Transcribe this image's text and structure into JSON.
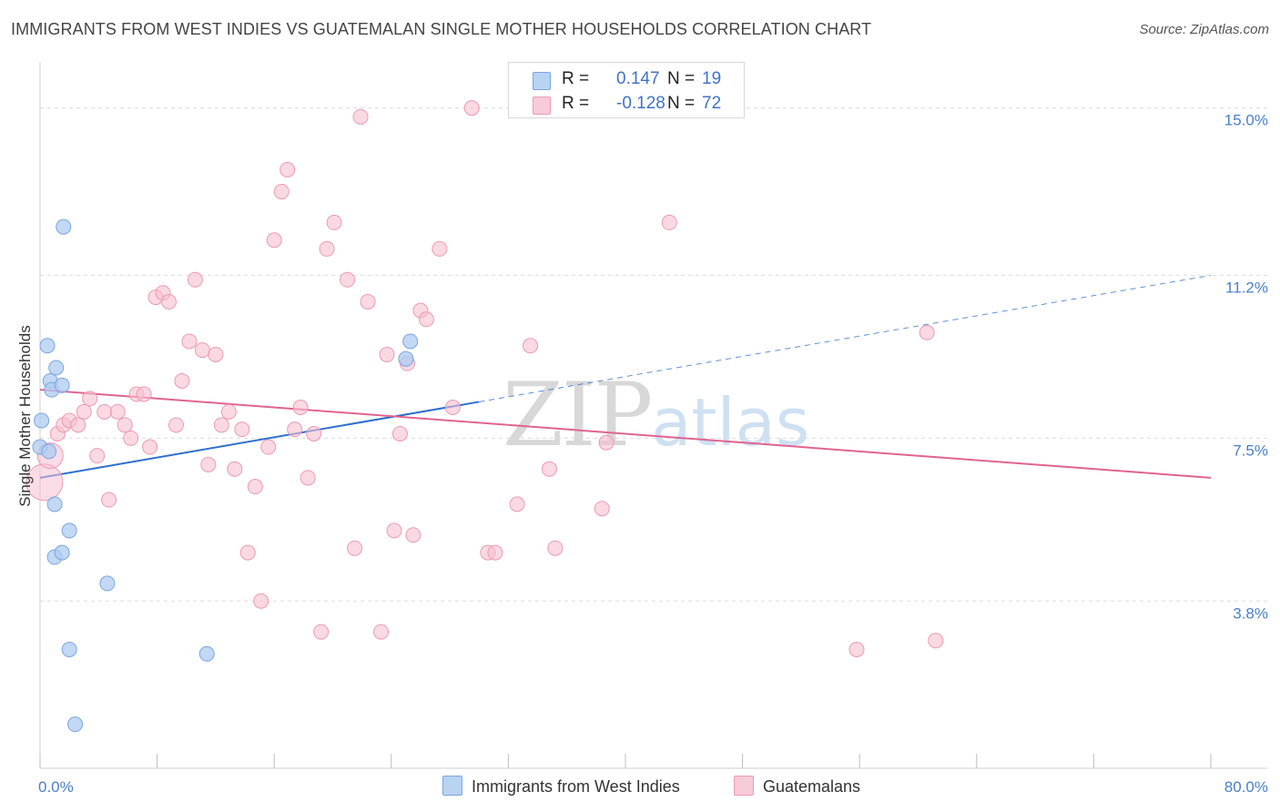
{
  "title": "IMMIGRANTS FROM WEST INDIES VS GUATEMALAN SINGLE MOTHER HOUSEHOLDS CORRELATION CHART",
  "source": "Source: ZipAtlas.com",
  "watermark": {
    "zip": "ZIP",
    "atlas": "atlas"
  },
  "legend": {
    "rows": [
      {
        "r_label": "R =",
        "r_value": "0.147",
        "n_label": "N =",
        "n_value": "19"
      },
      {
        "r_label": "R =",
        "r_value": "-0.128",
        "n_label": "N =",
        "n_value": "72"
      }
    ]
  },
  "bottom_legend": {
    "west_indies": "Immigrants from West Indies",
    "guatemalans": "Guatemalans"
  },
  "colors": {
    "blue_fill": "#aecbf0",
    "blue_stroke": "#7aa6df",
    "blue_line": "#2f6fce",
    "pink_fill": "#f6c0d1",
    "pink_stroke": "#ec9ab4",
    "pink_line": "#e0648f",
    "grid": "#dcdcdc",
    "tick_label": "#4a7fc9"
  },
  "chart_data": {
    "type": "scatter",
    "title": "IMMIGRANTS FROM WEST INDIES VS GUATEMALAN SINGLE MOTHER HOUSEHOLDS CORRELATION CHART",
    "xlabel": "",
    "ylabel": "Single Mother Households",
    "xlim": [
      0,
      80
    ],
    "ylim": [
      0,
      15.8
    ],
    "x_tick_labels": [
      {
        "value": 0,
        "label": "0.0%"
      },
      {
        "value": 80,
        "label": "80.0%"
      }
    ],
    "y_tick_labels": [
      {
        "value": 3.8,
        "label": "3.8%"
      },
      {
        "value": 7.5,
        "label": "7.5%"
      },
      {
        "value": 11.2,
        "label": "11.2%"
      },
      {
        "value": 15.0,
        "label": "15.0%"
      }
    ],
    "series": [
      {
        "name": "Immigrants from West Indies",
        "color": "blue",
        "r": 0.147,
        "n": 19,
        "trend": {
          "x_start": 0,
          "y_start": 6.6,
          "x_solid_end": 30,
          "x_end": 80,
          "y_end": 11.2
        },
        "points": [
          {
            "x": 0.0,
            "y": 7.3
          },
          {
            "x": 0.1,
            "y": 7.9
          },
          {
            "x": 0.5,
            "y": 9.6
          },
          {
            "x": 0.6,
            "y": 7.2
          },
          {
            "x": 0.7,
            "y": 8.8
          },
          {
            "x": 0.8,
            "y": 8.6
          },
          {
            "x": 1.0,
            "y": 6.0
          },
          {
            "x": 1.0,
            "y": 4.8
          },
          {
            "x": 1.1,
            "y": 9.1
          },
          {
            "x": 1.5,
            "y": 8.7
          },
          {
            "x": 1.5,
            "y": 4.9
          },
          {
            "x": 1.6,
            "y": 12.3
          },
          {
            "x": 2.0,
            "y": 5.4
          },
          {
            "x": 2.0,
            "y": 2.7
          },
          {
            "x": 2.4,
            "y": 1.0
          },
          {
            "x": 4.6,
            "y": 4.2
          },
          {
            "x": 11.4,
            "y": 2.6
          },
          {
            "x": 25.0,
            "y": 9.3
          },
          {
            "x": 25.3,
            "y": 9.7
          }
        ]
      },
      {
        "name": "Guatemalans",
        "color": "pink",
        "r": -0.128,
        "n": 72,
        "trend": {
          "x_start": 0,
          "y_start": 8.6,
          "x_end": 80,
          "y_end": 6.6
        },
        "points": [
          {
            "x": 0.3,
            "y": 6.5
          },
          {
            "x": 0.7,
            "y": 7.1
          },
          {
            "x": 1.2,
            "y": 7.6
          },
          {
            "x": 1.6,
            "y": 7.8
          },
          {
            "x": 2.0,
            "y": 7.9
          },
          {
            "x": 2.6,
            "y": 7.8
          },
          {
            "x": 3.0,
            "y": 8.1
          },
          {
            "x": 3.4,
            "y": 8.4
          },
          {
            "x": 3.9,
            "y": 7.1
          },
          {
            "x": 4.4,
            "y": 8.1
          },
          {
            "x": 4.7,
            "y": 6.1
          },
          {
            "x": 5.3,
            "y": 8.1
          },
          {
            "x": 5.8,
            "y": 7.8
          },
          {
            "x": 6.2,
            "y": 7.5
          },
          {
            "x": 6.6,
            "y": 8.5
          },
          {
            "x": 7.1,
            "y": 8.5
          },
          {
            "x": 7.5,
            "y": 7.3
          },
          {
            "x": 7.9,
            "y": 10.7
          },
          {
            "x": 8.4,
            "y": 10.8
          },
          {
            "x": 8.8,
            "y": 10.6
          },
          {
            "x": 9.3,
            "y": 7.8
          },
          {
            "x": 9.7,
            "y": 8.8
          },
          {
            "x": 10.2,
            "y": 9.7
          },
          {
            "x": 10.6,
            "y": 11.1
          },
          {
            "x": 11.1,
            "y": 9.5
          },
          {
            "x": 11.5,
            "y": 6.9
          },
          {
            "x": 12.0,
            "y": 9.4
          },
          {
            "x": 12.4,
            "y": 7.8
          },
          {
            "x": 12.9,
            "y": 8.1
          },
          {
            "x": 13.3,
            "y": 6.8
          },
          {
            "x": 13.8,
            "y": 7.7
          },
          {
            "x": 14.2,
            "y": 4.9
          },
          {
            "x": 14.7,
            "y": 6.4
          },
          {
            "x": 15.1,
            "y": 3.8
          },
          {
            "x": 15.6,
            "y": 7.3
          },
          {
            "x": 16.0,
            "y": 12.0
          },
          {
            "x": 16.5,
            "y": 13.1
          },
          {
            "x": 16.9,
            "y": 13.6
          },
          {
            "x": 17.4,
            "y": 7.7
          },
          {
            "x": 17.8,
            "y": 8.2
          },
          {
            "x": 18.3,
            "y": 6.6
          },
          {
            "x": 18.7,
            "y": 7.6
          },
          {
            "x": 19.2,
            "y": 3.1
          },
          {
            "x": 19.6,
            "y": 11.8
          },
          {
            "x": 20.1,
            "y": 12.4
          },
          {
            "x": 21.0,
            "y": 11.1
          },
          {
            "x": 21.5,
            "y": 5.0
          },
          {
            "x": 21.9,
            "y": 14.8
          },
          {
            "x": 22.4,
            "y": 10.6
          },
          {
            "x": 23.3,
            "y": 3.1
          },
          {
            "x": 23.7,
            "y": 9.4
          },
          {
            "x": 24.2,
            "y": 5.4
          },
          {
            "x": 24.6,
            "y": 7.6
          },
          {
            "x": 25.1,
            "y": 9.2
          },
          {
            "x": 25.5,
            "y": 5.3
          },
          {
            "x": 26.0,
            "y": 10.4
          },
          {
            "x": 26.4,
            "y": 10.2
          },
          {
            "x": 27.3,
            "y": 11.8
          },
          {
            "x": 28.2,
            "y": 8.2
          },
          {
            "x": 29.5,
            "y": 15.0
          },
          {
            "x": 30.6,
            "y": 4.9
          },
          {
            "x": 31.1,
            "y": 4.9
          },
          {
            "x": 32.6,
            "y": 6.0
          },
          {
            "x": 33.5,
            "y": 9.6
          },
          {
            "x": 34.8,
            "y": 6.8
          },
          {
            "x": 35.2,
            "y": 5.0
          },
          {
            "x": 38.4,
            "y": 5.9
          },
          {
            "x": 38.7,
            "y": 7.4
          },
          {
            "x": 43.0,
            "y": 12.4
          },
          {
            "x": 55.8,
            "y": 2.7
          },
          {
            "x": 60.6,
            "y": 9.9
          },
          {
            "x": 61.2,
            "y": 2.9
          }
        ]
      }
    ]
  }
}
